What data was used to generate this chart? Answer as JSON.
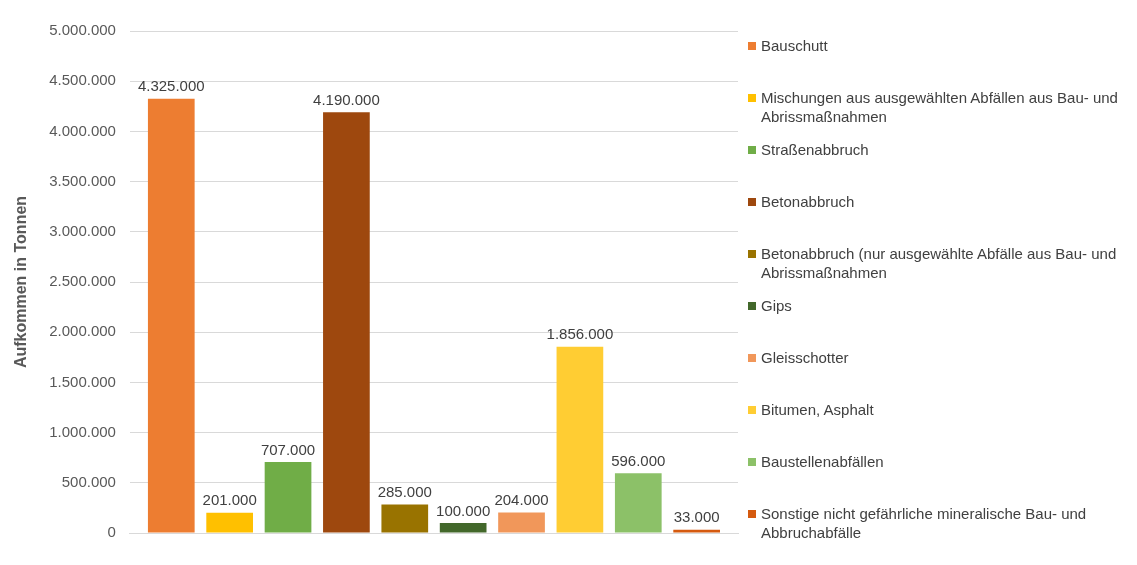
{
  "chart_data": {
    "type": "bar",
    "ylabel": "Aufkommen in Tonnen",
    "categories": [
      null
    ],
    "ylim": [
      0,
      5000000
    ],
    "yticks": [
      {
        "value": 0,
        "label": "0"
      },
      {
        "value": 500000,
        "label": "500.000"
      },
      {
        "value": 1000000,
        "label": "1.000.000"
      },
      {
        "value": 1500000,
        "label": "1.500.000"
      },
      {
        "value": 2000000,
        "label": "2.000.000"
      },
      {
        "value": 2500000,
        "label": "2.500.000"
      },
      {
        "value": 3000000,
        "label": "3.000.000"
      },
      {
        "value": 3500000,
        "label": "3.500.000"
      },
      {
        "value": 4000000,
        "label": "4.000.000"
      },
      {
        "value": 4500000,
        "label": "4.500.000"
      },
      {
        "value": 5000000,
        "label": "5.000.000"
      }
    ],
    "grid": "y",
    "legend": "right",
    "series": [
      {
        "name": "Bauschutt",
        "color": "#ed7d31",
        "values": [
          4325000
        ],
        "value_labels": [
          "4.325.000"
        ]
      },
      {
        "name": "Mischungen aus ausgewählten Abfällen aus Bau- und Abrissmaßnahmen",
        "color": "#ffc000",
        "values": [
          201000
        ],
        "value_labels": [
          "201.000"
        ]
      },
      {
        "name": "Straßenabbruch",
        "color": "#70ad47",
        "values": [
          707000
        ],
        "value_labels": [
          "707.000"
        ]
      },
      {
        "name": "Betonabbruch",
        "color": "#9e480e",
        "values": [
          4190000
        ],
        "value_labels": [
          "4.190.000"
        ]
      },
      {
        "name": "Betonabbruch (nur ausgewählte Abfälle aus Bau- und Abrissmaßnahmen",
        "color": "#997300",
        "values": [
          285000
        ],
        "value_labels": [
          "285.000"
        ]
      },
      {
        "name": "Gips",
        "color": "#43682b",
        "values": [
          100000
        ],
        "value_labels": [
          "100.000"
        ]
      },
      {
        "name": "Gleisschotter",
        "color": "#f1975a",
        "values": [
          204000
        ],
        "value_labels": [
          "204.000"
        ]
      },
      {
        "name": "Bitumen, Asphalt",
        "color": "#ffcd33",
        "values": [
          1856000
        ],
        "value_labels": [
          "1.856.000"
        ]
      },
      {
        "name": "Baustellenabfällen",
        "color": "#8cc168",
        "values": [
          596000
        ],
        "value_labels": [
          "596.000"
        ]
      },
      {
        "name": "Sonstige nicht gefährliche mineralische Bau- und Abbruchabfälle",
        "color": "#d55a0f",
        "values": [
          33000
        ],
        "value_labels": [
          "33.000"
        ]
      }
    ]
  }
}
